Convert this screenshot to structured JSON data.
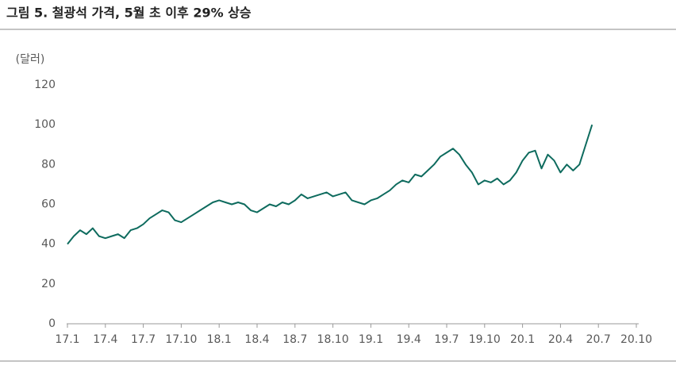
{
  "chart_data": {
    "type": "line",
    "title": "그림 5. 철광석 가격, 5월 초 이후 29% 상승",
    "y_label": "(달러)",
    "x": [
      0,
      0.5,
      1,
      1.5,
      2,
      2.5,
      3,
      3.5,
      4,
      4.5,
      5,
      5.5,
      6,
      6.5,
      7,
      7.5,
      8,
      8.5,
      9,
      9.5,
      10,
      10.5,
      11,
      11.5,
      12,
      12.5,
      13,
      13.5,
      14,
      14.5,
      15,
      15.5,
      16,
      16.5,
      17,
      17.5,
      18,
      18.5,
      19,
      19.5,
      20,
      20.5,
      21,
      21.5,
      22,
      22.5,
      23,
      23.5,
      24,
      24.5,
      25,
      25.5,
      26,
      26.5,
      27,
      27.5,
      28,
      28.5,
      29,
      29.5,
      30,
      30.5,
      31,
      31.5,
      32,
      32.5,
      33,
      33.5,
      34,
      34.5,
      35,
      35.5,
      36,
      36.5,
      37,
      37.5,
      38,
      38.5,
      39,
      39.5,
      40,
      40.5,
      41,
      41.5
    ],
    "series": [
      {
        "name": "철광석 가격",
        "color": "#0e6b5e",
        "values": [
          40,
          44,
          47,
          45,
          48,
          44,
          43,
          44,
          45,
          43,
          47,
          48,
          50,
          53,
          55,
          57,
          56,
          52,
          51,
          53,
          55,
          57,
          59,
          61,
          62,
          61,
          60,
          61,
          60,
          57,
          56,
          58,
          60,
          59,
          61,
          60,
          62,
          65,
          63,
          64,
          65,
          66,
          64,
          65,
          66,
          62,
          61,
          60,
          62,
          63,
          65,
          67,
          70,
          72,
          71,
          75,
          74,
          77,
          80,
          84,
          86,
          88,
          85,
          80,
          76,
          70,
          72,
          71,
          73,
          70,
          72,
          76,
          82,
          86,
          87,
          78,
          85,
          82,
          76,
          80,
          77,
          80,
          90,
          100
        ]
      }
    ],
    "xlim": [
      0,
      45
    ],
    "xticks": [
      {
        "value": 0,
        "label": "17.1"
      },
      {
        "value": 3,
        "label": "17.4"
      },
      {
        "value": 6,
        "label": "17.7"
      },
      {
        "value": 9,
        "label": "17.10"
      },
      {
        "value": 12,
        "label": "18.1"
      },
      {
        "value": 15,
        "label": "18.4"
      },
      {
        "value": 18,
        "label": "18.7"
      },
      {
        "value": 21,
        "label": "18.10"
      },
      {
        "value": 24,
        "label": "19.1"
      },
      {
        "value": 27,
        "label": "19.4"
      },
      {
        "value": 30,
        "label": "19.7"
      },
      {
        "value": 33,
        "label": "19.10"
      },
      {
        "value": 36,
        "label": "20.1"
      },
      {
        "value": 39,
        "label": "20.4"
      },
      {
        "value": 42,
        "label": "20.7"
      },
      {
        "value": 45,
        "label": "20.10"
      }
    ],
    "ylim": [
      0,
      120
    ],
    "yticks": [
      0,
      20,
      40,
      60,
      80,
      100,
      120
    ],
    "grid": false
  }
}
